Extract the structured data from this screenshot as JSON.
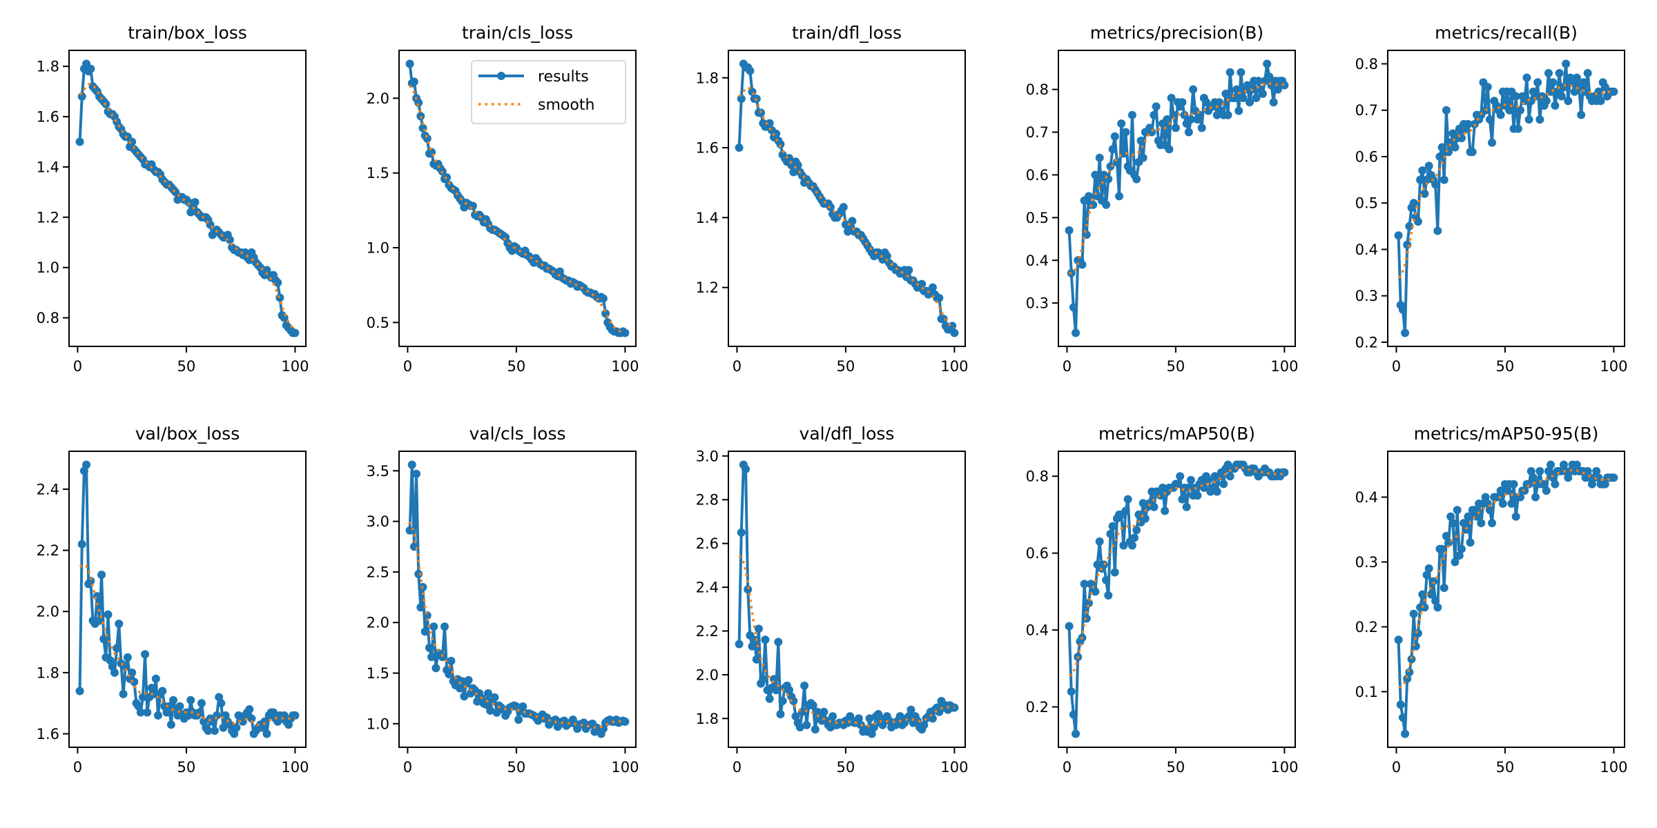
{
  "chart_data": {
    "type": "line",
    "layout": "2 rows x 5 columns of subplots",
    "legend": {
      "placement": "upper-right of train/cls_loss",
      "entries": [
        "results",
        "smooth"
      ]
    },
    "colors": {
      "results": "#1f77b4",
      "smooth": "#ff7f0e"
    },
    "smoothing": "gaussian sigma 3",
    "x": {
      "start": 1,
      "end": 100,
      "ticks": [
        0,
        50,
        100
      ],
      "tick_labels": [
        "0",
        "50",
        "100"
      ]
    },
    "panels": [
      {
        "title": "train/box_loss",
        "yticks": [
          0.8,
          1.0,
          1.2,
          1.4,
          1.6,
          1.8
        ],
        "ytick_labels": [
          "0.8",
          "1.0",
          "1.2",
          "1.4",
          "1.6",
          "1.8"
        ],
        "values": [
          1.5,
          1.68,
          1.79,
          1.81,
          1.78,
          1.79,
          1.72,
          1.71,
          1.7,
          1.68,
          1.67,
          1.66,
          1.65,
          1.62,
          1.61,
          1.61,
          1.6,
          1.58,
          1.56,
          1.55,
          1.53,
          1.52,
          1.52,
          1.48,
          1.5,
          1.47,
          1.46,
          1.45,
          1.44,
          1.43,
          1.41,
          1.41,
          1.4,
          1.41,
          1.39,
          1.38,
          1.38,
          1.37,
          1.35,
          1.34,
          1.33,
          1.33,
          1.32,
          1.31,
          1.3,
          1.27,
          1.28,
          1.28,
          1.27,
          1.27,
          1.26,
          1.22,
          1.24,
          1.26,
          1.22,
          1.21,
          1.2,
          1.2,
          1.2,
          1.19,
          1.17,
          1.13,
          1.14,
          1.15,
          1.14,
          1.13,
          1.12,
          1.12,
          1.13,
          1.11,
          1.08,
          1.07,
          1.07,
          1.06,
          1.06,
          1.05,
          1.06,
          1.04,
          1.03,
          1.06,
          1.04,
          1.02,
          1.01,
          1.0,
          0.98,
          0.97,
          0.99,
          0.97,
          0.96,
          0.97,
          0.95,
          0.94,
          0.88,
          0.81,
          0.8,
          0.77,
          0.76,
          0.75,
          0.74,
          0.74
        ]
      },
      {
        "title": "train/cls_loss",
        "yticks": [
          0.5,
          1.0,
          1.5,
          2.0
        ],
        "ytick_labels": [
          "0.5",
          "1.0",
          "1.5",
          "2.0"
        ],
        "values": [
          2.23,
          2.1,
          2.11,
          2.0,
          1.97,
          1.88,
          1.8,
          1.75,
          1.73,
          1.63,
          1.64,
          1.56,
          1.55,
          1.56,
          1.53,
          1.51,
          1.46,
          1.47,
          1.42,
          1.4,
          1.39,
          1.38,
          1.35,
          1.33,
          1.31,
          1.27,
          1.3,
          1.29,
          1.28,
          1.28,
          1.22,
          1.21,
          1.22,
          1.2,
          1.17,
          1.19,
          1.16,
          1.13,
          1.12,
          1.12,
          1.11,
          1.1,
          1.09,
          1.08,
          1.07,
          1.03,
          1.0,
          0.98,
          1.01,
          1.0,
          0.98,
          0.97,
          0.96,
          0.98,
          0.95,
          0.94,
          0.92,
          0.9,
          0.93,
          0.91,
          0.89,
          0.88,
          0.88,
          0.86,
          0.86,
          0.85,
          0.84,
          0.82,
          0.81,
          0.84,
          0.8,
          0.79,
          0.78,
          0.78,
          0.76,
          0.77,
          0.76,
          0.74,
          0.75,
          0.74,
          0.73,
          0.71,
          0.7,
          0.7,
          0.69,
          0.69,
          0.67,
          0.66,
          0.67,
          0.66,
          0.56,
          0.5,
          0.47,
          0.45,
          0.44,
          0.44,
          0.43,
          0.43,
          0.44,
          0.43
        ]
      },
      {
        "title": "train/dfl_loss",
        "yticks": [
          1.2,
          1.4,
          1.6,
          1.8
        ],
        "ytick_labels": [
          "1.2",
          "1.4",
          "1.6",
          "1.8"
        ],
        "values": [
          1.6,
          1.74,
          1.84,
          1.83,
          1.83,
          1.82,
          1.76,
          1.74,
          1.74,
          1.7,
          1.7,
          1.67,
          1.66,
          1.66,
          1.67,
          1.65,
          1.63,
          1.64,
          1.62,
          1.61,
          1.58,
          1.57,
          1.56,
          1.57,
          1.55,
          1.53,
          1.56,
          1.55,
          1.53,
          1.52,
          1.5,
          1.51,
          1.5,
          1.49,
          1.49,
          1.48,
          1.47,
          1.46,
          1.45,
          1.44,
          1.44,
          1.44,
          1.43,
          1.41,
          1.4,
          1.4,
          1.41,
          1.42,
          1.43,
          1.38,
          1.36,
          1.37,
          1.39,
          1.36,
          1.36,
          1.35,
          1.35,
          1.34,
          1.33,
          1.32,
          1.31,
          1.3,
          1.29,
          1.3,
          1.3,
          1.29,
          1.28,
          1.3,
          1.29,
          1.27,
          1.26,
          1.26,
          1.25,
          1.25,
          1.24,
          1.24,
          1.25,
          1.23,
          1.25,
          1.22,
          1.22,
          1.21,
          1.2,
          1.2,
          1.21,
          1.19,
          1.19,
          1.18,
          1.19,
          1.2,
          1.18,
          1.17,
          1.17,
          1.11,
          1.11,
          1.09,
          1.08,
          1.08,
          1.09,
          1.07
        ]
      },
      {
        "title": "metrics/precision(B)",
        "yticks": [
          0.3,
          0.4,
          0.5,
          0.6,
          0.7,
          0.8
        ],
        "ytick_labels": [
          "0.3",
          "0.4",
          "0.5",
          "0.6",
          "0.7",
          "0.8"
        ],
        "values": [
          0.47,
          0.37,
          0.29,
          0.23,
          0.4,
          0.4,
          0.39,
          0.54,
          0.46,
          0.55,
          0.53,
          0.53,
          0.6,
          0.55,
          0.64,
          0.54,
          0.6,
          0.53,
          0.59,
          0.62,
          0.66,
          0.69,
          0.63,
          0.55,
          0.72,
          0.65,
          0.7,
          0.62,
          0.61,
          0.74,
          0.6,
          0.59,
          0.63,
          0.68,
          0.64,
          0.7,
          0.7,
          0.71,
          0.7,
          0.74,
          0.76,
          0.68,
          0.67,
          0.72,
          0.67,
          0.73,
          0.66,
          0.78,
          0.74,
          0.71,
          0.77,
          0.76,
          0.77,
          0.74,
          0.72,
          0.7,
          0.73,
          0.8,
          0.75,
          0.73,
          0.74,
          0.71,
          0.78,
          0.77,
          0.75,
          0.76,
          0.76,
          0.77,
          0.74,
          0.77,
          0.75,
          0.74,
          0.79,
          0.74,
          0.84,
          0.78,
          0.78,
          0.8,
          0.75,
          0.84,
          0.78,
          0.8,
          0.81,
          0.77,
          0.8,
          0.82,
          0.78,
          0.82,
          0.8,
          0.79,
          0.82,
          0.86,
          0.83,
          0.81,
          0.77,
          0.82,
          0.8,
          0.82,
          0.82,
          0.81
        ]
      },
      {
        "title": "metrics/recall(B)",
        "yticks": [
          0.2,
          0.3,
          0.4,
          0.5,
          0.6,
          0.7,
          0.8
        ],
        "ytick_labels": [
          "0.2",
          "0.3",
          "0.4",
          "0.5",
          "0.6",
          "0.7",
          "0.8"
        ],
        "values": [
          0.43,
          0.28,
          0.27,
          0.22,
          0.41,
          0.45,
          0.49,
          0.5,
          0.47,
          0.46,
          0.55,
          0.57,
          0.52,
          0.55,
          0.58,
          0.56,
          0.55,
          0.54,
          0.44,
          0.6,
          0.62,
          0.55,
          0.7,
          0.61,
          0.63,
          0.65,
          0.62,
          0.64,
          0.66,
          0.64,
          0.67,
          0.66,
          0.67,
          0.61,
          0.61,
          0.67,
          0.69,
          0.68,
          0.69,
          0.76,
          0.7,
          0.75,
          0.68,
          0.63,
          0.72,
          0.71,
          0.7,
          0.69,
          0.74,
          0.71,
          0.74,
          0.7,
          0.74,
          0.66,
          0.73,
          0.66,
          0.7,
          0.73,
          0.72,
          0.77,
          0.68,
          0.72,
          0.74,
          0.73,
          0.76,
          0.68,
          0.73,
          0.71,
          0.72,
          0.78,
          0.74,
          0.76,
          0.71,
          0.74,
          0.78,
          0.73,
          0.75,
          0.8,
          0.72,
          0.77,
          0.76,
          0.74,
          0.77,
          0.75,
          0.69,
          0.76,
          0.74,
          0.78,
          0.73,
          0.72,
          0.73,
          0.72,
          0.74,
          0.72,
          0.76,
          0.75,
          0.73,
          0.74,
          0.74,
          0.74
        ]
      },
      {
        "title": "val/box_loss",
        "yticks": [
          1.6,
          1.8,
          2.0,
          2.2,
          2.4
        ],
        "ytick_labels": [
          "1.6",
          "1.8",
          "2.0",
          "2.2",
          "2.4"
        ],
        "values": [
          1.74,
          2.22,
          2.46,
          2.48,
          2.09,
          2.1,
          1.97,
          1.96,
          2.05,
          1.97,
          2.12,
          1.91,
          1.85,
          1.99,
          1.84,
          1.82,
          1.8,
          1.88,
          1.96,
          1.83,
          1.73,
          1.82,
          1.85,
          1.78,
          1.8,
          1.77,
          1.7,
          1.69,
          1.67,
          1.72,
          1.86,
          1.67,
          1.72,
          1.75,
          1.73,
          1.78,
          1.66,
          1.73,
          1.74,
          1.69,
          1.67,
          1.69,
          1.63,
          1.71,
          1.68,
          1.66,
          1.69,
          1.66,
          1.65,
          1.67,
          1.66,
          1.71,
          1.67,
          1.66,
          1.66,
          1.67,
          1.7,
          1.64,
          1.62,
          1.61,
          1.65,
          1.64,
          1.61,
          1.66,
          1.72,
          1.7,
          1.62,
          1.66,
          1.64,
          1.63,
          1.61,
          1.6,
          1.62,
          1.66,
          1.65,
          1.64,
          1.66,
          1.67,
          1.68,
          1.65,
          1.6,
          1.61,
          1.62,
          1.63,
          1.62,
          1.64,
          1.6,
          1.66,
          1.67,
          1.67,
          1.65,
          1.64,
          1.66,
          1.65,
          1.66,
          1.64,
          1.63,
          1.65,
          1.66,
          1.66
        ]
      },
      {
        "title": "val/cls_loss",
        "yticks": [
          1.0,
          1.5,
          2.0,
          2.5,
          3.0,
          3.5
        ],
        "ytick_labels": [
          "1.0",
          "1.5",
          "2.0",
          "2.5",
          "3.0",
          "3.5"
        ],
        "values": [
          2.91,
          3.56,
          2.75,
          3.47,
          2.48,
          2.15,
          2.35,
          1.91,
          2.07,
          1.75,
          1.66,
          1.96,
          1.55,
          1.7,
          1.68,
          1.66,
          1.96,
          1.53,
          1.49,
          1.62,
          1.42,
          1.38,
          1.44,
          1.35,
          1.42,
          1.27,
          1.4,
          1.43,
          1.3,
          1.35,
          1.33,
          1.22,
          1.3,
          1.25,
          1.2,
          1.19,
          1.3,
          1.13,
          1.22,
          1.26,
          1.11,
          1.18,
          1.16,
          1.14,
          1.08,
          1.12,
          1.16,
          1.17,
          1.18,
          1.17,
          1.04,
          1.15,
          1.17,
          1.1,
          1.1,
          1.1,
          1.09,
          1.08,
          1.06,
          1.03,
          1.07,
          1.09,
          1.05,
          1.06,
          0.99,
          1.02,
          1.03,
          1.04,
          0.97,
          1.0,
          1.02,
          1.03,
          0.98,
          1.0,
          1.01,
          1.04,
          1.0,
          0.95,
          0.99,
          1.0,
          1.01,
          0.95,
          0.98,
          0.99,
          1.0,
          0.92,
          0.96,
          0.94,
          0.9,
          0.95,
          1.01,
          1.03,
          1.04,
          1.02,
          1.02,
          1.04,
          1.01,
          1.02,
          1.03,
          1.02
        ]
      },
      {
        "title": "val/dfl_loss",
        "yticks": [
          1.8,
          2.0,
          2.2,
          2.4,
          2.6,
          2.8,
          3.0
        ],
        "ytick_labels": [
          "1.8",
          "2.0",
          "2.2",
          "2.4",
          "2.6",
          "2.8",
          "3.0"
        ],
        "values": [
          2.14,
          2.65,
          2.96,
          2.94,
          2.39,
          2.18,
          2.13,
          2.16,
          2.07,
          2.21,
          1.96,
          1.98,
          2.16,
          1.93,
          1.89,
          1.94,
          1.98,
          1.93,
          2.15,
          1.82,
          1.88,
          1.94,
          1.95,
          1.93,
          1.9,
          1.88,
          1.81,
          1.78,
          1.76,
          1.83,
          1.95,
          1.77,
          1.86,
          1.87,
          1.86,
          1.75,
          1.83,
          1.8,
          1.79,
          1.83,
          1.79,
          1.77,
          1.76,
          1.81,
          1.77,
          1.77,
          1.78,
          1.78,
          1.77,
          1.79,
          1.78,
          1.81,
          1.79,
          1.78,
          1.78,
          1.8,
          1.77,
          1.74,
          1.75,
          1.74,
          1.8,
          1.73,
          1.76,
          1.81,
          1.82,
          1.78,
          1.77,
          1.8,
          1.81,
          1.79,
          1.76,
          1.78,
          1.77,
          1.79,
          1.81,
          1.77,
          1.78,
          1.8,
          1.81,
          1.84,
          1.78,
          1.81,
          1.79,
          1.76,
          1.75,
          1.77,
          1.8,
          1.81,
          1.83,
          1.8,
          1.84,
          1.85,
          1.83,
          1.88,
          1.85,
          1.86,
          1.84,
          1.86,
          1.85,
          1.85
        ]
      },
      {
        "title": "metrics/mAP50(B)",
        "yticks": [
          0.2,
          0.4,
          0.6,
          0.8
        ],
        "ytick_labels": [
          "0.2",
          "0.4",
          "0.6",
          "0.8"
        ],
        "values": [
          0.41,
          0.24,
          0.18,
          0.13,
          0.33,
          0.37,
          0.38,
          0.52,
          0.43,
          0.47,
          0.52,
          0.51,
          0.5,
          0.57,
          0.63,
          0.56,
          0.57,
          0.53,
          0.49,
          0.65,
          0.67,
          0.55,
          0.69,
          0.7,
          0.7,
          0.62,
          0.71,
          0.74,
          0.63,
          0.62,
          0.64,
          0.66,
          0.7,
          0.68,
          0.73,
          0.69,
          0.72,
          0.73,
          0.76,
          0.72,
          0.76,
          0.76,
          0.75,
          0.77,
          0.71,
          0.76,
          0.77,
          0.77,
          0.77,
          0.78,
          0.78,
          0.8,
          0.74,
          0.77,
          0.72,
          0.77,
          0.79,
          0.75,
          0.77,
          0.75,
          0.78,
          0.79,
          0.77,
          0.8,
          0.79,
          0.76,
          0.77,
          0.8,
          0.76,
          0.8,
          0.81,
          0.78,
          0.82,
          0.83,
          0.8,
          0.82,
          0.82,
          0.83,
          0.83,
          0.83,
          0.83,
          0.82,
          0.81,
          0.81,
          0.82,
          0.82,
          0.81,
          0.8,
          0.81,
          0.81,
          0.82,
          0.81,
          0.81,
          0.8,
          0.8,
          0.8,
          0.81,
          0.8,
          0.81,
          0.81
        ]
      },
      {
        "title": "metrics/mAP50-95(B)",
        "yticks": [
          0.1,
          0.2,
          0.3,
          0.4
        ],
        "ytick_labels": [
          "0.1",
          "0.2",
          "0.3",
          "0.4"
        ],
        "values": [
          0.18,
          0.08,
          0.06,
          0.035,
          0.12,
          0.13,
          0.15,
          0.22,
          0.17,
          0.19,
          0.23,
          0.25,
          0.23,
          0.28,
          0.29,
          0.25,
          0.27,
          0.24,
          0.23,
          0.32,
          0.32,
          0.26,
          0.34,
          0.33,
          0.37,
          0.36,
          0.3,
          0.38,
          0.31,
          0.32,
          0.36,
          0.35,
          0.37,
          0.33,
          0.38,
          0.38,
          0.37,
          0.39,
          0.36,
          0.39,
          0.4,
          0.39,
          0.38,
          0.36,
          0.4,
          0.4,
          0.4,
          0.41,
          0.39,
          0.42,
          0.41,
          0.42,
          0.39,
          0.42,
          0.37,
          0.4,
          0.4,
          0.41,
          0.41,
          0.42,
          0.42,
          0.44,
          0.43,
          0.4,
          0.42,
          0.44,
          0.42,
          0.42,
          0.41,
          0.44,
          0.45,
          0.43,
          0.42,
          0.44,
          0.44,
          0.44,
          0.45,
          0.44,
          0.43,
          0.44,
          0.45,
          0.44,
          0.45,
          0.44,
          0.44,
          0.44,
          0.43,
          0.44,
          0.43,
          0.42,
          0.43,
          0.44,
          0.43,
          0.42,
          0.42,
          0.42,
          0.43,
          0.43,
          0.43,
          0.43
        ]
      }
    ]
  }
}
